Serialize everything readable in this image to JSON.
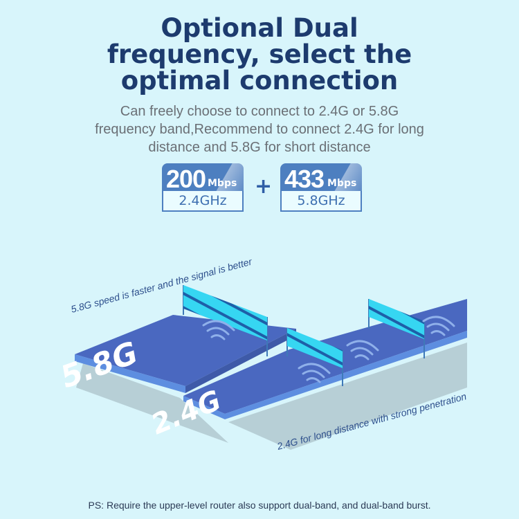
{
  "title": [
    "Optional Dual",
    "frequency, select the",
    "optimal connection"
  ],
  "subtitle": [
    "Can freely choose to connect to 2.4G or 5.8G",
    "frequency band,Recommend to connect 2.4G for long",
    "distance and 5.8G for short distance"
  ],
  "badges": [
    {
      "speed": "200",
      "unit": "Mbps",
      "band": "2.4GHz"
    },
    {
      "speed": "433",
      "unit": "Mbps",
      "band": "5.8GHz"
    }
  ],
  "plus": "+",
  "illustration": {
    "label_58": "5.8G",
    "label_24": "2.4G",
    "caption_58": "5.8G speed is faster and the signal is better",
    "caption_24": "2.4G for long distance with strong penetration",
    "icons": [
      "wifi-signal-icon",
      "flag-icon"
    ]
  },
  "footnote": "PS: Require the upper-level router also support dual-band, and dual-band burst.",
  "colors": {
    "background": "#d8f5fb",
    "title": "#1d3b6e",
    "badge": "#4d7fc0",
    "plate": "#4a68c0",
    "flag": "#36d6f2"
  }
}
